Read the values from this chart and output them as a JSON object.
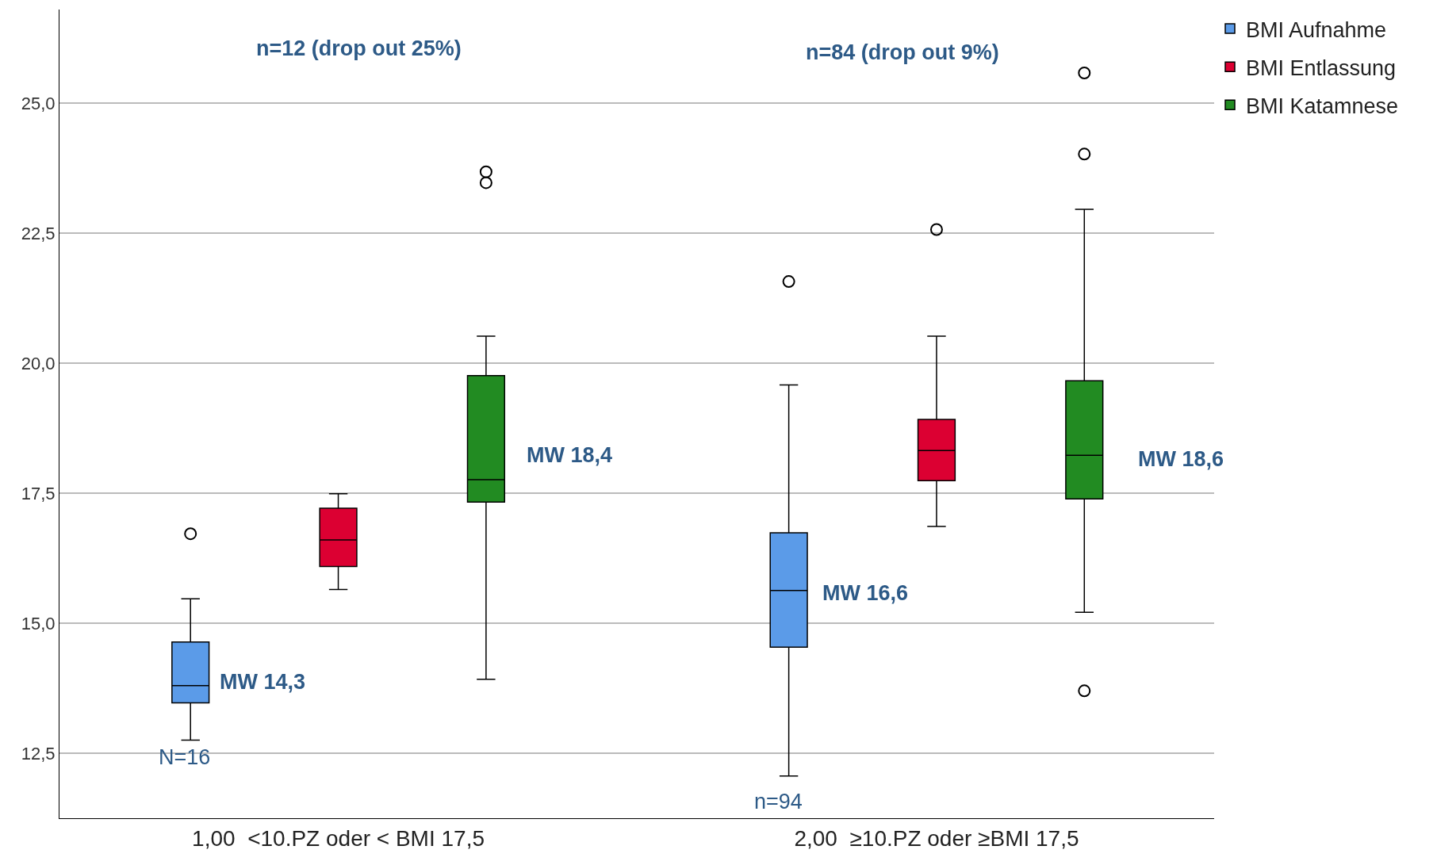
{
  "chart_data": {
    "type": "box",
    "categories": [
      "1,00  <10.PZ oder < BMI 17,5",
      "2,00  ≥10.PZ oder ≥BMI 17,5"
    ],
    "series": [
      {
        "name": "BMI Aufnahme",
        "color": "#5b9be8",
        "boxes": [
          {
            "low": 12.75,
            "q1": 13.47,
            "median": 13.8,
            "q3": 14.64,
            "high": 15.47,
            "outliers": [
              16.72
            ]
          },
          {
            "low": 12.06,
            "q1": 14.54,
            "median": 15.63,
            "q3": 16.74,
            "high": 19.58,
            "outliers": [
              21.57
            ]
          }
        ]
      },
      {
        "name": "BMI Entlassung",
        "color": "#dc0032",
        "boxes": [
          {
            "low": 15.65,
            "q1": 16.09,
            "median": 16.6,
            "q3": 17.21,
            "high": 17.49
          },
          {
            "low": 16.86,
            "q1": 17.74,
            "median": 18.32,
            "q3": 18.92,
            "high": 20.52,
            "outliers": [
              22.57
            ]
          }
        ]
      },
      {
        "name": "BMI Katamnese",
        "color": "#228b22",
        "boxes": [
          {
            "low": 13.92,
            "q1": 17.33,
            "median": 17.76,
            "q3": 19.76,
            "high": 20.52,
            "outliers": [
              23.47,
              23.68
            ]
          },
          {
            "low": 15.21,
            "q1": 17.39,
            "median": 18.23,
            "q3": 19.66,
            "high": 22.96,
            "outliers": [
              13.7,
              24.02,
              25.58
            ]
          }
        ]
      }
    ],
    "ylim": [
      11.25,
      26.8
    ],
    "yticks": [
      {
        "value": 12.5,
        "label": "12,5"
      },
      {
        "value": 15,
        "label": "15,0"
      },
      {
        "value": 17.5,
        "label": "17,5"
      },
      {
        "value": 20,
        "label": "20,0"
      },
      {
        "value": 22.5,
        "label": "22,5"
      },
      {
        "value": 25,
        "label": "25,0"
      }
    ],
    "grid": "y",
    "legend": "top right",
    "annotations": [
      "n=12 (drop out 25%)",
      "n=84 (drop out 9%)",
      "MW 14,3",
      "MW 18,4",
      "MW 16,6",
      "MW 18,6",
      "N=16",
      "n=94"
    ]
  }
}
